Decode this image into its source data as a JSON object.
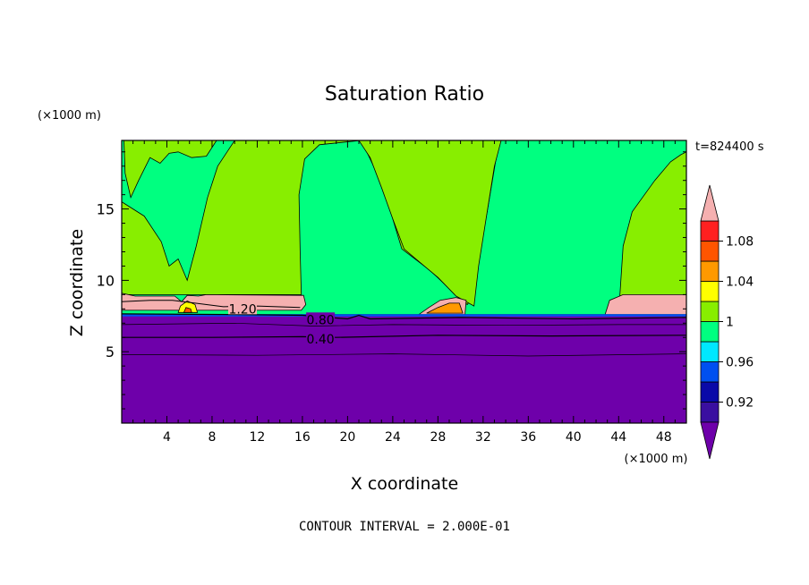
{
  "chart_data": {
    "type": "contour",
    "title": "Saturation Ratio",
    "xlabel": "X coordinate",
    "ylabel": "Z coordinate",
    "x_unit": "(×1000 m)",
    "y_unit": "(×1000 m)",
    "time_label": "t=824400 s",
    "footer": "CONTOUR INTERVAL = 2.000E-01",
    "xlim": [
      0,
      50
    ],
    "ylim": [
      0,
      19.8
    ],
    "x_ticks": [
      4,
      8,
      12,
      16,
      20,
      24,
      28,
      32,
      36,
      40,
      44,
      48
    ],
    "y_ticks": [
      5,
      10,
      15
    ],
    "colorbar": {
      "levels": [
        0.9,
        0.92,
        0.94,
        0.96,
        0.98,
        1.0,
        1.02,
        1.04,
        1.06,
        1.08,
        1.1
      ],
      "tick_labels": [
        {
          "value": 0.92,
          "label": "0.92"
        },
        {
          "value": 0.96,
          "label": "0.96"
        },
        {
          "value": 1.0,
          "label": "1"
        },
        {
          "value": 1.04,
          "label": "1.04"
        },
        {
          "value": 1.08,
          "label": "1.08"
        }
      ],
      "colors": [
        "#3a0fa0",
        "#0a0aa8",
        "#0050f0",
        "#00e8ff",
        "#00ff80",
        "#88ee00",
        "#ffff00",
        "#ff9900",
        "#ff5500",
        "#ff2020"
      ],
      "under_color": "#6e00aa",
      "over_color": "#f5b0b0"
    },
    "contour_labels": [
      {
        "value": "1.20",
        "x": 10.7,
        "z": 8.0
      },
      {
        "value": "0.80",
        "x": 17.6,
        "z": 7.25
      },
      {
        "value": "0.40",
        "x": 17.6,
        "z": 5.9
      }
    ],
    "background_color": "#6e00aa",
    "layer_colors": {
      "supersat": "#f5b0b0",
      "near_one": "#00ff80",
      "above_one": "#88ee00"
    }
  }
}
